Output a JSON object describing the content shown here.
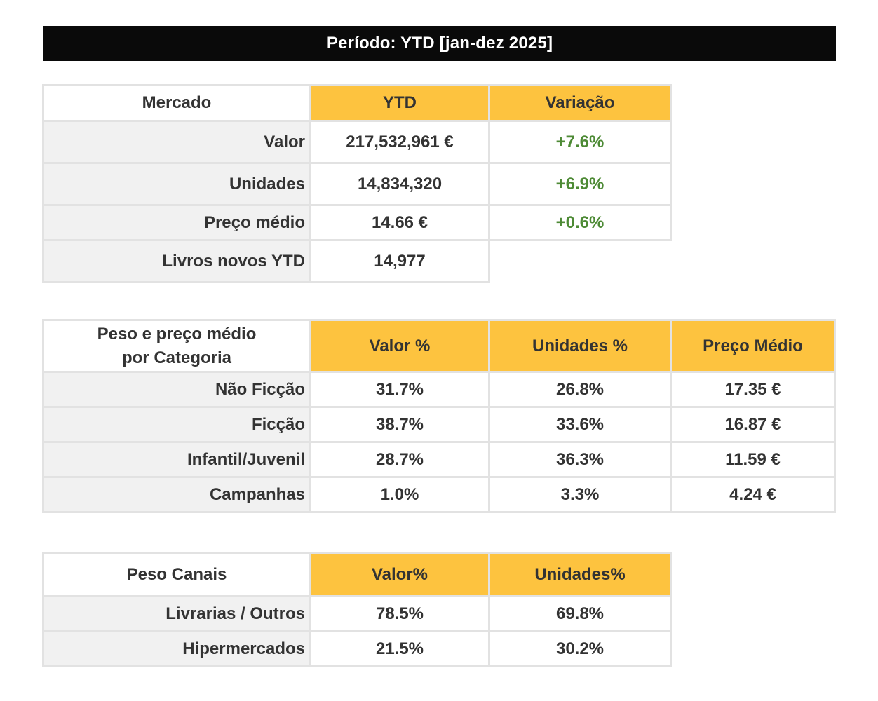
{
  "banner": {
    "title": "Período: YTD [jan-dez 2025]"
  },
  "colors": {
    "header_yellow": "#fdc33f",
    "positive_green": "#4d8a35",
    "banner_bg": "#0a0a0a",
    "label_bg": "#f1f1f1"
  },
  "mercado": {
    "headers": [
      "Mercado",
      "YTD",
      "Variação"
    ],
    "rows": [
      {
        "label": "Valor",
        "ytd": "217,532,961 €",
        "variacao": "+7.6%"
      },
      {
        "label": "Unidades",
        "ytd": "14,834,320",
        "variacao": "+6.9%"
      },
      {
        "label": "Preço médio",
        "ytd": "14.66 €",
        "variacao": "+0.6%"
      },
      {
        "label": "Livros novos YTD",
        "ytd": "14,977"
      }
    ]
  },
  "categoria": {
    "header_line1": "Peso e preço médio",
    "header_line2": "por Categoria",
    "headers": [
      "Valor %",
      "Unidades %",
      "Preço Médio"
    ],
    "rows": [
      {
        "label": "Não Ficção",
        "valor": "31.7%",
        "unidades": "26.8%",
        "preco": "17.35 €"
      },
      {
        "label": "Ficção",
        "valor": "38.7%",
        "unidades": "33.6%",
        "preco": "16.87 €"
      },
      {
        "label": "Infantil/Juvenil",
        "valor": "28.7%",
        "unidades": "36.3%",
        "preco": "11.59 €"
      },
      {
        "label": "Campanhas",
        "valor": "1.0%",
        "unidades": "3.3%",
        "preco": "4.24 €"
      }
    ]
  },
  "canais": {
    "headers": [
      "Peso Canais",
      "Valor%",
      "Unidades%"
    ],
    "rows": [
      {
        "label": "Livrarias / Outros",
        "valor": "78.5%",
        "unidades": "69.8%"
      },
      {
        "label": "Hipermercados",
        "valor": "21.5%",
        "unidades": "30.2%"
      }
    ]
  }
}
